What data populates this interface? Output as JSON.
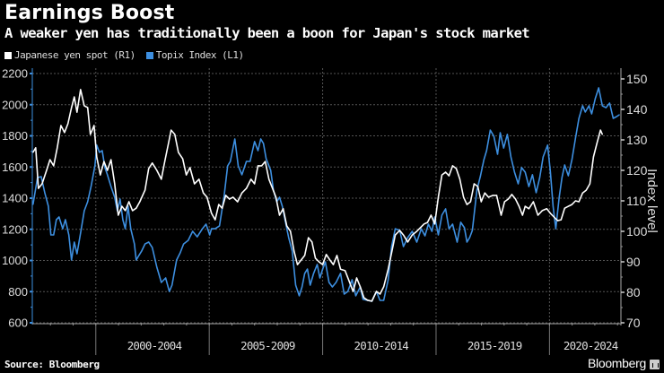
{
  "header": {
    "title": "Earnings Boost",
    "subtitle": "A weaker yen has traditionally been a boon for Japan's stock market"
  },
  "footer": {
    "source": "Source: Bloomberg",
    "brand": "Bloomberg",
    "brand_icon": "bloomberg-chart-icon"
  },
  "colors": {
    "background": "#000000",
    "yen": "#ffffff",
    "topix": "#3d8fe0",
    "grid": "#555555",
    "axis": "#aaaaaa"
  },
  "chart_data": {
    "type": "line",
    "title": "Earnings Boost",
    "subtitle": "A weaker yen has traditionally been a boon for Japan's stock market",
    "legend_position": "top-left",
    "grid": true,
    "legend": [
      {
        "name": "Japanese yen spot (R1)",
        "color": "#ffffff"
      },
      {
        "name": "Topix Index (L1)",
        "color": "#3d8fe0"
      }
    ],
    "x_axis": {
      "range": [
        1997.2,
        2023.15
      ],
      "tick_labels": [
        "2000-2004",
        "2005-2009",
        "2010-2014",
        "2015-2019",
        "2020-2024"
      ],
      "period_starts": [
        2000,
        2005,
        2010,
        2015,
        2020
      ]
    },
    "y_left": {
      "label": "",
      "range": [
        600,
        2200
      ],
      "ticks": [
        600,
        800,
        1000,
        1200,
        1400,
        1600,
        1800,
        2000,
        2200
      ]
    },
    "y_right": {
      "label": "Index level",
      "range": [
        70,
        150
      ],
      "ticks": [
        70,
        80,
        90,
        100,
        110,
        120,
        130,
        140,
        150
      ]
    },
    "series": [
      {
        "name": "Topix Index (L1)",
        "axis": "left",
        "x": [
          1997.23,
          1997.43,
          1997.59,
          1997.75,
          1997.91,
          1998.02,
          1998.14,
          1998.26,
          1998.38,
          1998.54,
          1998.66,
          1998.81,
          1998.93,
          1999.05,
          1999.17,
          1999.33,
          1999.49,
          1999.64,
          1999.8,
          1999.96,
          2000.04,
          2000.16,
          2000.28,
          2000.4,
          2000.51,
          2000.67,
          2000.83,
          2000.95,
          2001.07,
          2001.19,
          2001.3,
          2001.42,
          2001.54,
          2001.7,
          2001.78,
          2001.9,
          2002.02,
          2002.17,
          2002.33,
          2002.49,
          2002.69,
          2002.89,
          2003.08,
          2003.24,
          2003.36,
          2003.56,
          2003.72,
          2003.87,
          2004.07,
          2004.27,
          2004.47,
          2004.7,
          2004.86,
          2005.02,
          2005.1,
          2005.26,
          2005.45,
          2005.65,
          2005.81,
          2005.93,
          2006.13,
          2006.28,
          2006.44,
          2006.64,
          2006.8,
          2007.0,
          2007.15,
          2007.27,
          2007.39,
          2007.51,
          2007.71,
          2007.83,
          2007.98,
          2008.1,
          2008.22,
          2008.34,
          2008.5,
          2008.66,
          2008.81,
          2008.97,
          2009.09,
          2009.21,
          2009.33,
          2009.45,
          2009.6,
          2009.76,
          2009.88,
          2010.0,
          2010.12,
          2010.28,
          2010.43,
          2010.59,
          2010.79,
          2010.95,
          2011.11,
          2011.3,
          2011.46,
          2011.66,
          2011.78,
          2011.98,
          2012.17,
          2012.37,
          2012.53,
          2012.69,
          2012.89,
          2013.04,
          2013.2,
          2013.4,
          2013.56,
          2013.75,
          2013.95,
          2014.15,
          2014.35,
          2014.51,
          2014.66,
          2014.82,
          2014.94,
          2015.1,
          2015.26,
          2015.42,
          2015.57,
          2015.73,
          2015.93,
          2016.09,
          2016.25,
          2016.36,
          2016.48,
          2016.6,
          2016.8,
          2016.96,
          2017.11,
          2017.23,
          2017.39,
          2017.55,
          2017.71,
          2017.83,
          2017.98,
          2018.14,
          2018.3,
          2018.46,
          2018.62,
          2018.77,
          2018.93,
          2019.09,
          2019.25,
          2019.41,
          2019.57,
          2019.72,
          2019.92,
          2020.04,
          2020.16,
          2020.28,
          2020.43,
          2020.55,
          2020.67,
          2020.83,
          2020.99,
          2021.15,
          2021.3,
          2021.46,
          2021.58,
          2021.74,
          2021.86,
          2022.02,
          2022.17,
          2022.33,
          2022.49,
          2022.65,
          2022.81,
          2022.96,
          2023.08
        ],
        "values": [
          1360,
          1532,
          1538,
          1435,
          1348,
          1164,
          1164,
          1262,
          1279,
          1204,
          1262,
          1164,
          1003,
          1118,
          1043,
          1176,
          1319,
          1377,
          1481,
          1607,
          1740,
          1694,
          1705,
          1596,
          1550,
          1475,
          1406,
          1319,
          1394,
          1262,
          1204,
          1348,
          1204,
          1106,
          1003,
          1032,
          1060,
          1106,
          1118,
          1083,
          957,
          859,
          888,
          801,
          842,
          1003,
          1049,
          1106,
          1129,
          1187,
          1152,
          1204,
          1233,
          1164,
          1204,
          1204,
          1222,
          1406,
          1607,
          1636,
          1780,
          1607,
          1550,
          1636,
          1636,
          1763,
          1705,
          1780,
          1751,
          1653,
          1578,
          1452,
          1377,
          1406,
          1348,
          1262,
          1147,
          1060,
          842,
          773,
          830,
          917,
          945,
          842,
          917,
          974,
          888,
          945,
          991,
          859,
          830,
          859,
          917,
          784,
          801,
          876,
          773,
          830,
          750,
          744,
          738,
          801,
          744,
          744,
          876,
          1089,
          1204,
          1193,
          1089,
          1147,
          1187,
          1118,
          1204,
          1158,
          1233,
          1187,
          1279,
          1164,
          1291,
          1331,
          1204,
          1233,
          1118,
          1245,
          1210,
          1118,
          1147,
          1193,
          1452,
          1544,
          1647,
          1705,
          1837,
          1797,
          1682,
          1820,
          1722,
          1809,
          1665,
          1567,
          1492,
          1596,
          1567,
          1475,
          1550,
          1435,
          1532,
          1665,
          1740,
          1567,
          1348,
          1204,
          1406,
          1532,
          1613,
          1544,
          1647,
          1786,
          1912,
          1993,
          1953,
          1993,
          1941,
          2039,
          2108,
          1993,
          1981,
          2010,
          1912,
          1924,
          1935
        ]
      },
      {
        "name": "Japanese yen spot (R1)",
        "axis": "right",
        "x": [
          1997.23,
          1997.35,
          1997.47,
          1997.63,
          1997.83,
          1997.98,
          1998.14,
          1998.3,
          1998.46,
          1998.62,
          1998.77,
          1998.93,
          1999.05,
          1999.17,
          1999.33,
          1999.49,
          1999.64,
          1999.76,
          1999.92,
          2000.04,
          2000.2,
          2000.36,
          2000.51,
          2000.67,
          2000.83,
          2000.99,
          2001.15,
          2001.3,
          2001.46,
          2001.62,
          2001.78,
          2001.94,
          2002.17,
          2002.33,
          2002.49,
          2002.69,
          2002.89,
          2003.04,
          2003.2,
          2003.32,
          2003.48,
          2003.64,
          2003.83,
          2003.99,
          2004.15,
          2004.35,
          2004.55,
          2004.74,
          2004.9,
          2005.1,
          2005.26,
          2005.42,
          2005.57,
          2005.73,
          2005.89,
          2006.05,
          2006.25,
          2006.44,
          2006.64,
          2006.84,
          2007.0,
          2007.15,
          2007.31,
          2007.47,
          2007.63,
          2007.79,
          2007.94,
          2008.1,
          2008.26,
          2008.42,
          2008.58,
          2008.74,
          2008.89,
          2009.05,
          2009.21,
          2009.37,
          2009.53,
          2009.68,
          2009.84,
          2010.0,
          2010.16,
          2010.32,
          2010.47,
          2010.63,
          2010.79,
          2010.99,
          2011.19,
          2011.34,
          2011.5,
          2011.66,
          2011.82,
          2011.98,
          2012.17,
          2012.37,
          2012.53,
          2012.69,
          2012.89,
          2013.04,
          2013.2,
          2013.4,
          2013.56,
          2013.75,
          2013.95,
          2014.15,
          2014.31,
          2014.47,
          2014.62,
          2014.78,
          2014.94,
          2015.1,
          2015.26,
          2015.42,
          2015.57,
          2015.73,
          2015.89,
          2016.05,
          2016.21,
          2016.36,
          2016.52,
          2016.68,
          2016.84,
          2016.99,
          2017.15,
          2017.31,
          2017.51,
          2017.67,
          2017.87,
          2018.02,
          2018.18,
          2018.34,
          2018.5,
          2018.66,
          2018.81,
          2018.93,
          2019.09,
          2019.29,
          2019.49,
          2019.68,
          2019.88,
          2020.04,
          2020.2,
          2020.36,
          2020.51,
          2020.67,
          2020.83,
          2020.99,
          2021.15,
          2021.3,
          2021.46,
          2021.62,
          2021.78,
          2021.94,
          2022.09,
          2022.25,
          2022.33
        ],
        "values": [
          125.9,
          127.4,
          114.1,
          115.6,
          120.0,
          123.5,
          121.5,
          127.4,
          134.7,
          132.4,
          135.3,
          140.6,
          144.1,
          139.1,
          146.5,
          141.2,
          140.6,
          131.8,
          134.7,
          124.4,
          118.5,
          122.9,
          120.0,
          123.5,
          115.6,
          105.3,
          108.2,
          106.8,
          109.7,
          106.8,
          107.6,
          109.7,
          113.5,
          120.6,
          122.4,
          120.0,
          117.1,
          122.9,
          128.8,
          133.2,
          131.8,
          125.9,
          123.8,
          118.5,
          120.9,
          115.6,
          117.1,
          112.6,
          111.2,
          105.9,
          103.8,
          108.8,
          107.6,
          111.8,
          110.6,
          111.2,
          109.7,
          112.6,
          114.1,
          117.1,
          115.6,
          121.5,
          121.5,
          122.9,
          117.1,
          114.1,
          111.2,
          105.3,
          107.4,
          101.8,
          100.0,
          93.5,
          89.1,
          90.6,
          92.1,
          97.9,
          96.5,
          91.2,
          90.0,
          89.1,
          92.4,
          90.6,
          89.1,
          92.1,
          87.6,
          87.1,
          83.2,
          80.3,
          84.7,
          81.8,
          78.2,
          77.4,
          77.1,
          80.3,
          79.4,
          81.8,
          87.6,
          92.9,
          98.8,
          100.3,
          98.8,
          96.5,
          98.8,
          100.0,
          101.2,
          102.4,
          102.9,
          105.3,
          102.4,
          111.2,
          118.5,
          119.4,
          118.2,
          121.5,
          120.6,
          117.1,
          111.2,
          108.8,
          109.7,
          115.6,
          114.7,
          109.7,
          112.6,
          111.2,
          111.8,
          111.8,
          105.3,
          109.7,
          110.6,
          112.1,
          110.6,
          108.2,
          105.3,
          108.2,
          107.4,
          109.7,
          105.3,
          106.8,
          107.4,
          105.9,
          104.7,
          103.5,
          103.8,
          107.6,
          108.2,
          108.8,
          110.0,
          109.7,
          112.6,
          113.5,
          115.6,
          124.4,
          128.8,
          133.2,
          131.8
        ]
      }
    ]
  }
}
